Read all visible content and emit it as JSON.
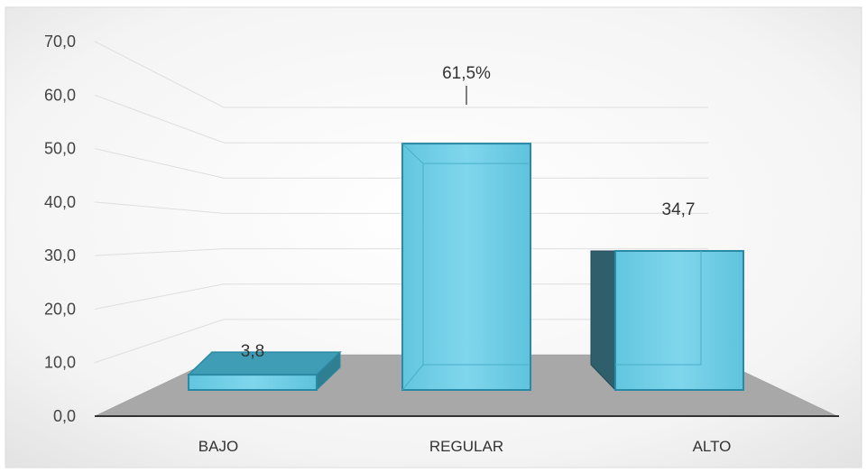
{
  "chart_data": {
    "type": "bar",
    "style": "3d-column",
    "title": "",
    "xlabel": "",
    "ylabel": "",
    "categories": [
      "BAJO",
      "REGULAR",
      "ALTO"
    ],
    "series": [
      {
        "values": [
          3.8,
          61.5,
          34.7
        ]
      }
    ],
    "data_labels": [
      "3,8",
      "61,5%",
      "34,7"
    ],
    "ylim": [
      0,
      70
    ],
    "yticks": [
      "0,0",
      "10,0",
      "20,0",
      "30,0",
      "40,0",
      "50,0",
      "60,0",
      "70,0"
    ],
    "grid": true,
    "legend": "none",
    "colors": {
      "bar": "#5bc8e3",
      "bar_edge": "#2a8aa5",
      "bar_side": "#2f5f6b",
      "floor": "#a8a8a8",
      "background_edge": "#e6e6e6"
    }
  }
}
